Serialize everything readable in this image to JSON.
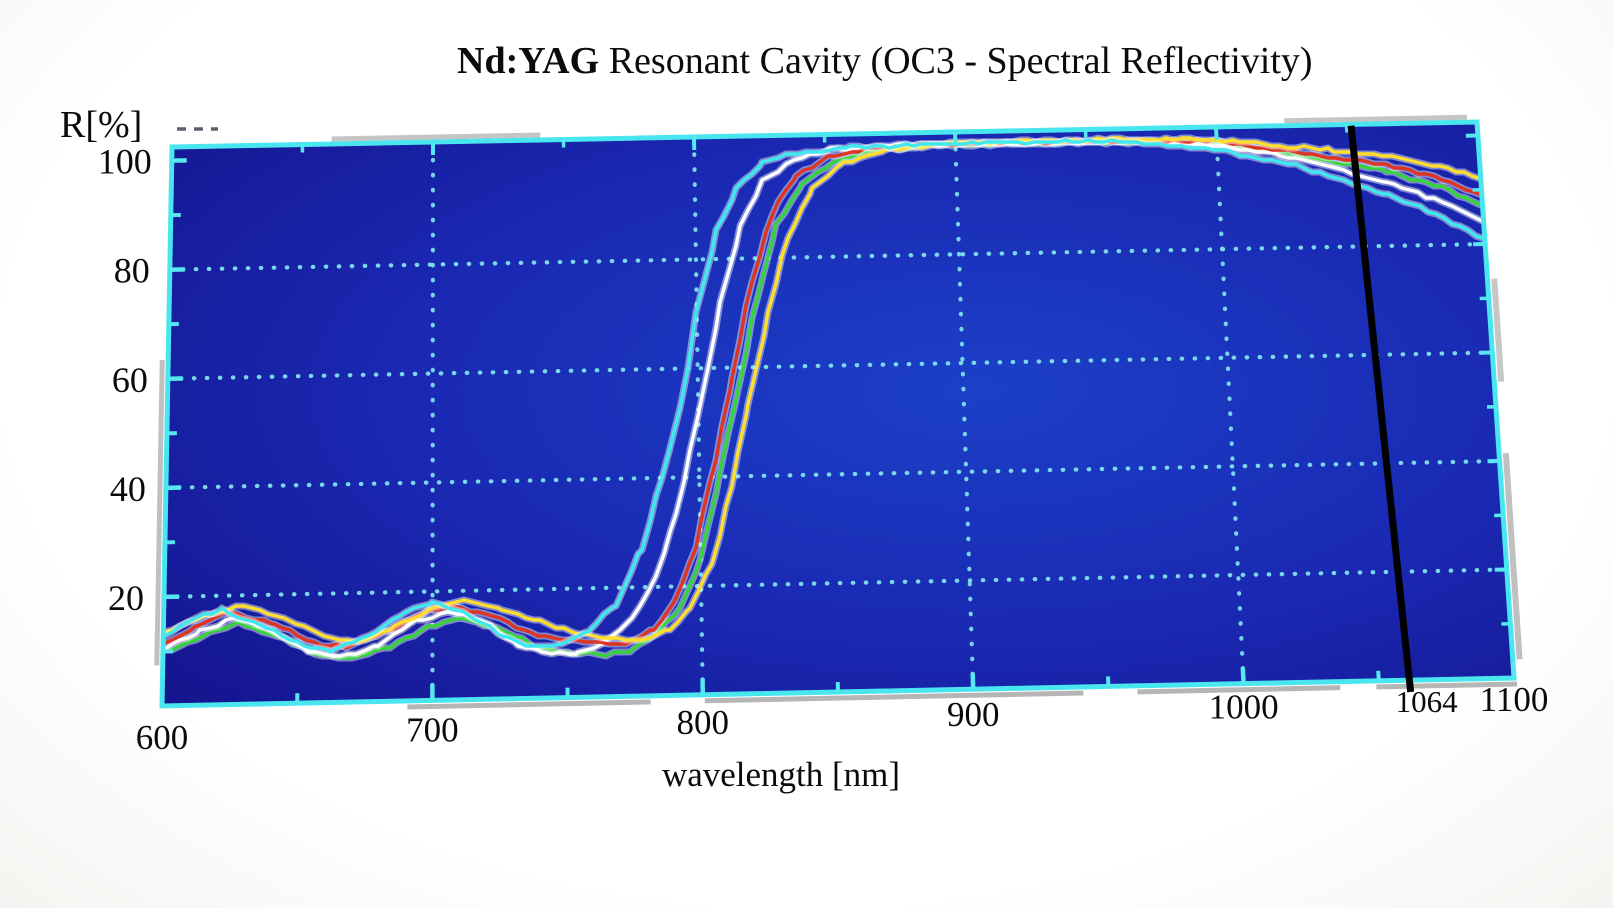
{
  "title": {
    "bold": "Nd:YAG",
    "rest": " Resonant Cavity (OC3 - Spectral Reflectivity)"
  },
  "axes": {
    "y_label": "R[%]",
    "x_label": "wavelength [nm]",
    "x_ticks": [
      600,
      700,
      800,
      900,
      1000,
      1100
    ],
    "x_minor_ticks": [
      650,
      750,
      850,
      950,
      1050
    ],
    "y_ticks": [
      20,
      40,
      60,
      80,
      100
    ],
    "y_minor_ticks": [
      10,
      30,
      50,
      70,
      90
    ],
    "x_gridlines": [
      700,
      800,
      900,
      1000
    ],
    "y_gridlines": [
      20,
      40,
      60,
      80
    ],
    "x_range": [
      600,
      1100
    ],
    "y_range": [
      0,
      102.5
    ],
    "marker": {
      "value": 1064,
      "label": "1064",
      "color": "#000000"
    }
  },
  "colors": {
    "plot_center": "#1c40c8",
    "plot_mid": "#1a28b2",
    "plot_edge": "#141289",
    "border": "#4ae6ef",
    "grid": "#7fe3ee",
    "tick": "#55e8f0",
    "shadow": "#9e9e9e",
    "text": "#0b0b0b"
  },
  "chart_data": {
    "type": "line",
    "title": "Nd:YAG Resonant Cavity (OC3 - Spectral Reflectivity)",
    "xlabel": "wavelength [nm]",
    "ylabel": "R[%]",
    "xlim": [
      600,
      1100
    ],
    "ylim": [
      0,
      102.5
    ],
    "grid": true,
    "grid_style": "dotted-cyan",
    "legend": "none",
    "annotation": {
      "type": "vertical-line",
      "x": 1064,
      "label": "1064",
      "color": "#000000"
    },
    "series": [
      {
        "name": "OC3 curve green",
        "color": "#35d43a",
        "points": [
          [
            600,
            10
          ],
          [
            614,
            12.5
          ],
          [
            628,
            15
          ],
          [
            642,
            12.5
          ],
          [
            656,
            9
          ],
          [
            670,
            8
          ],
          [
            684,
            10
          ],
          [
            698,
            13.5
          ],
          [
            710,
            15
          ],
          [
            724,
            13
          ],
          [
            738,
            9.5
          ],
          [
            752,
            8
          ],
          [
            764,
            7.8
          ],
          [
            774,
            8.5
          ],
          [
            784,
            11.5
          ],
          [
            792,
            16
          ],
          [
            800,
            25
          ],
          [
            808,
            41
          ],
          [
            815,
            56
          ],
          [
            823,
            73
          ],
          [
            831,
            86
          ],
          [
            841,
            93.5
          ],
          [
            853,
            97.5
          ],
          [
            870,
            99.5
          ],
          [
            892,
            100.1
          ],
          [
            960,
            100.1
          ],
          [
            1000,
            99.7
          ],
          [
            1030,
            97
          ],
          [
            1064,
            93.9
          ],
          [
            1085,
            90.5
          ],
          [
            1100,
            87
          ]
        ]
      },
      {
        "name": "OC3 curve white",
        "color": "#ffffff",
        "points": [
          [
            600,
            10.5
          ],
          [
            614,
            13.5
          ],
          [
            626,
            16
          ],
          [
            640,
            13.5
          ],
          [
            654,
            9.5
          ],
          [
            666,
            8.2
          ],
          [
            680,
            10.5
          ],
          [
            694,
            14.5
          ],
          [
            706,
            16.2
          ],
          [
            718,
            14.5
          ],
          [
            732,
            9.8
          ],
          [
            744,
            8.2
          ],
          [
            754,
            8.3
          ],
          [
            764,
            10
          ],
          [
            774,
            14
          ],
          [
            783,
            22
          ],
          [
            791,
            33
          ],
          [
            801,
            53
          ],
          [
            809,
            72
          ],
          [
            817,
            86
          ],
          [
            826,
            94
          ],
          [
            838,
            98
          ],
          [
            852,
            99.6
          ],
          [
            875,
            100.2
          ],
          [
            970,
            100.2
          ],
          [
            1000,
            99.1
          ],
          [
            1030,
            96.6
          ],
          [
            1064,
            91.6
          ],
          [
            1085,
            88
          ],
          [
            1100,
            84
          ]
        ]
      },
      {
        "name": "OC3 curve red",
        "color": "#e03422",
        "points": [
          [
            600,
            11.5
          ],
          [
            613,
            14.5
          ],
          [
            625,
            17
          ],
          [
            641,
            14.5
          ],
          [
            656,
            11
          ],
          [
            668,
            10.2
          ],
          [
            682,
            12.5
          ],
          [
            696,
            16
          ],
          [
            708,
            17.2
          ],
          [
            722,
            15.5
          ],
          [
            736,
            12
          ],
          [
            750,
            10.5
          ],
          [
            762,
            9.8
          ],
          [
            772,
            9.6
          ],
          [
            782,
            12
          ],
          [
            790,
            17
          ],
          [
            798,
            27
          ],
          [
            806,
            43
          ],
          [
            813,
            58
          ],
          [
            821,
            76
          ],
          [
            829,
            88
          ],
          [
            839,
            95
          ],
          [
            851,
            98.4
          ],
          [
            868,
            99.8
          ],
          [
            890,
            100.3
          ],
          [
            960,
            100.3
          ],
          [
            1000,
            99.9
          ],
          [
            1030,
            97.5
          ],
          [
            1064,
            95
          ],
          [
            1085,
            92
          ],
          [
            1100,
            89
          ]
        ]
      },
      {
        "name": "OC3 curve yellow",
        "color": "#ffdf2b",
        "points": [
          [
            600,
            13.5
          ],
          [
            615,
            16.5
          ],
          [
            630,
            18
          ],
          [
            646,
            15.5
          ],
          [
            660,
            12
          ],
          [
            672,
            11
          ],
          [
            686,
            13.5
          ],
          [
            700,
            17
          ],
          [
            712,
            18.2
          ],
          [
            726,
            16.5
          ],
          [
            740,
            14
          ],
          [
            754,
            11.8
          ],
          [
            766,
            10.5
          ],
          [
            778,
            10.2
          ],
          [
            788,
            12
          ],
          [
            796,
            16
          ],
          [
            804,
            24
          ],
          [
            812,
            38
          ],
          [
            819,
            53
          ],
          [
            827,
            70
          ],
          [
            835,
            84
          ],
          [
            845,
            92.5
          ],
          [
            857,
            97.3
          ],
          [
            875,
            99.5
          ],
          [
            898,
            100.5
          ],
          [
            960,
            100.6
          ],
          [
            1000,
            100.2
          ],
          [
            1030,
            98.5
          ],
          [
            1064,
            96.7
          ],
          [
            1085,
            94.5
          ],
          [
            1100,
            92
          ]
        ]
      },
      {
        "name": "OC3 curve cyan",
        "color": "#3ee9f0",
        "points": [
          [
            600,
            13
          ],
          [
            612,
            16
          ],
          [
            622,
            17.5
          ],
          [
            638,
            14
          ],
          [
            652,
            10.5
          ],
          [
            662,
            9.5
          ],
          [
            676,
            12
          ],
          [
            690,
            16.5
          ],
          [
            700,
            18
          ],
          [
            712,
            16
          ],
          [
            726,
            11.5
          ],
          [
            738,
            9.5
          ],
          [
            748,
            9.8
          ],
          [
            758,
            12
          ],
          [
            768,
            17
          ],
          [
            778,
            27
          ],
          [
            786,
            40
          ],
          [
            793,
            53
          ],
          [
            800,
            70
          ],
          [
            808,
            85
          ],
          [
            816,
            93
          ],
          [
            826,
            97.5
          ],
          [
            840,
            99.3
          ],
          [
            860,
            100
          ],
          [
            900,
            100.4
          ],
          [
            960,
            100.4
          ],
          [
            1000,
            98.4
          ],
          [
            1030,
            95.2
          ],
          [
            1064,
            89.5
          ],
          [
            1085,
            85
          ],
          [
            1100,
            81
          ]
        ]
      }
    ]
  }
}
